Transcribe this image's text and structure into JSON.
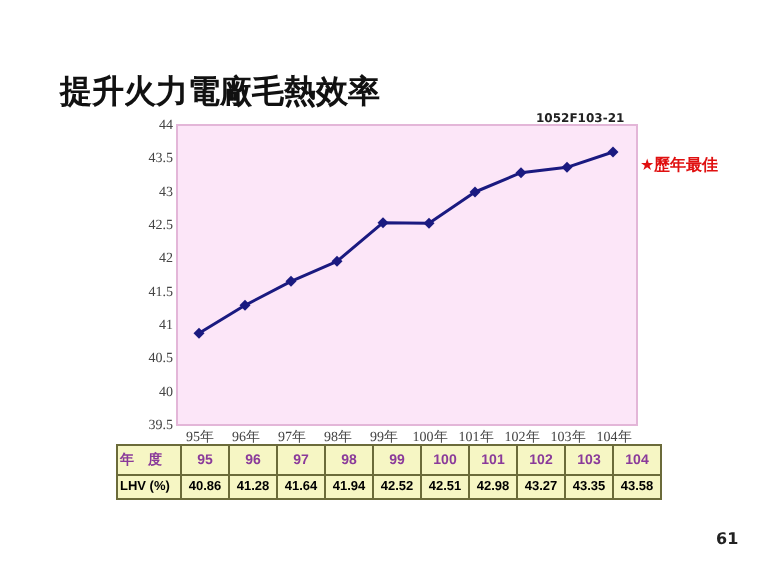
{
  "chart_data": {
    "type": "line",
    "title": "提升火力電廠毛熱效率",
    "x": [
      95,
      96,
      97,
      98,
      99,
      100,
      101,
      102,
      103,
      104
    ],
    "series": [
      {
        "color": "#1a1a80",
        "values": [
          40.86,
          41.28,
          41.64,
          41.94,
          42.52,
          42.51,
          42.98,
          43.27,
          43.35,
          43.58
        ]
      }
    ],
    "xlim": [
      94.5,
      104.5
    ],
    "xticks": [
      {
        "value": 95,
        "label": "95年"
      },
      {
        "value": 96,
        "label": "96年"
      },
      {
        "value": 97,
        "label": "97年"
      },
      {
        "value": 98,
        "label": "98年"
      },
      {
        "value": 99,
        "label": "99年"
      },
      {
        "value": 100,
        "label": "100年"
      },
      {
        "value": 101,
        "label": "101年"
      },
      {
        "value": 102,
        "label": "102年"
      },
      {
        "value": 103,
        "label": "103年"
      },
      {
        "value": 104,
        "label": "104年"
      }
    ],
    "ylim": [
      39.5,
      44
    ],
    "yticks": [
      39.5,
      40,
      40.5,
      41,
      41.5,
      42,
      42.5,
      43,
      43.5,
      44
    ],
    "marker": "diamond",
    "grid": false,
    "annotations": [
      "1052F103-21",
      "★歷年最佳",
      "年　度",
      "95",
      "96",
      "97",
      "98",
      "99",
      "100",
      "101",
      "102",
      "103",
      "104",
      "LHV (%)",
      "40.86",
      "41.28",
      "41.64",
      "41.94",
      "42.52",
      "42.51",
      "42.98",
      "43.27",
      "43.35",
      "43.58",
      "61"
    ]
  }
}
